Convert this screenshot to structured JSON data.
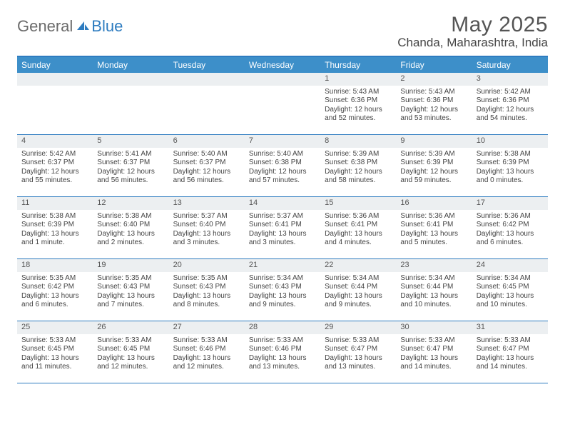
{
  "logo": {
    "general": "General",
    "blue": "Blue"
  },
  "title": "May 2025",
  "location": "Chanda, Maharashtra, India",
  "calendar": {
    "accent_color": "#2e7cc0",
    "header_bg": "#3d8fc9",
    "daynum_bg": "#eceff1",
    "bg": "#ffffff",
    "text_color": "#444444",
    "header_fontsize": 12,
    "body_fontsize": 10,
    "columns": [
      "Sunday",
      "Monday",
      "Tuesday",
      "Wednesday",
      "Thursday",
      "Friday",
      "Saturday"
    ],
    "weeks": [
      [
        {
          "n": "",
          "sr": "",
          "ss": "",
          "dl": ""
        },
        {
          "n": "",
          "sr": "",
          "ss": "",
          "dl": ""
        },
        {
          "n": "",
          "sr": "",
          "ss": "",
          "dl": ""
        },
        {
          "n": "",
          "sr": "",
          "ss": "",
          "dl": ""
        },
        {
          "n": "1",
          "sr": "Sunrise: 5:43 AM",
          "ss": "Sunset: 6:36 PM",
          "dl": "Daylight: 12 hours and 52 minutes."
        },
        {
          "n": "2",
          "sr": "Sunrise: 5:43 AM",
          "ss": "Sunset: 6:36 PM",
          "dl": "Daylight: 12 hours and 53 minutes."
        },
        {
          "n": "3",
          "sr": "Sunrise: 5:42 AM",
          "ss": "Sunset: 6:36 PM",
          "dl": "Daylight: 12 hours and 54 minutes."
        }
      ],
      [
        {
          "n": "4",
          "sr": "Sunrise: 5:42 AM",
          "ss": "Sunset: 6:37 PM",
          "dl": "Daylight: 12 hours and 55 minutes."
        },
        {
          "n": "5",
          "sr": "Sunrise: 5:41 AM",
          "ss": "Sunset: 6:37 PM",
          "dl": "Daylight: 12 hours and 56 minutes."
        },
        {
          "n": "6",
          "sr": "Sunrise: 5:40 AM",
          "ss": "Sunset: 6:37 PM",
          "dl": "Daylight: 12 hours and 56 minutes."
        },
        {
          "n": "7",
          "sr": "Sunrise: 5:40 AM",
          "ss": "Sunset: 6:38 PM",
          "dl": "Daylight: 12 hours and 57 minutes."
        },
        {
          "n": "8",
          "sr": "Sunrise: 5:39 AM",
          "ss": "Sunset: 6:38 PM",
          "dl": "Daylight: 12 hours and 58 minutes."
        },
        {
          "n": "9",
          "sr": "Sunrise: 5:39 AM",
          "ss": "Sunset: 6:39 PM",
          "dl": "Daylight: 12 hours and 59 minutes."
        },
        {
          "n": "10",
          "sr": "Sunrise: 5:38 AM",
          "ss": "Sunset: 6:39 PM",
          "dl": "Daylight: 13 hours and 0 minutes."
        }
      ],
      [
        {
          "n": "11",
          "sr": "Sunrise: 5:38 AM",
          "ss": "Sunset: 6:39 PM",
          "dl": "Daylight: 13 hours and 1 minute."
        },
        {
          "n": "12",
          "sr": "Sunrise: 5:38 AM",
          "ss": "Sunset: 6:40 PM",
          "dl": "Daylight: 13 hours and 2 minutes."
        },
        {
          "n": "13",
          "sr": "Sunrise: 5:37 AM",
          "ss": "Sunset: 6:40 PM",
          "dl": "Daylight: 13 hours and 3 minutes."
        },
        {
          "n": "14",
          "sr": "Sunrise: 5:37 AM",
          "ss": "Sunset: 6:41 PM",
          "dl": "Daylight: 13 hours and 3 minutes."
        },
        {
          "n": "15",
          "sr": "Sunrise: 5:36 AM",
          "ss": "Sunset: 6:41 PM",
          "dl": "Daylight: 13 hours and 4 minutes."
        },
        {
          "n": "16",
          "sr": "Sunrise: 5:36 AM",
          "ss": "Sunset: 6:41 PM",
          "dl": "Daylight: 13 hours and 5 minutes."
        },
        {
          "n": "17",
          "sr": "Sunrise: 5:36 AM",
          "ss": "Sunset: 6:42 PM",
          "dl": "Daylight: 13 hours and 6 minutes."
        }
      ],
      [
        {
          "n": "18",
          "sr": "Sunrise: 5:35 AM",
          "ss": "Sunset: 6:42 PM",
          "dl": "Daylight: 13 hours and 6 minutes."
        },
        {
          "n": "19",
          "sr": "Sunrise: 5:35 AM",
          "ss": "Sunset: 6:43 PM",
          "dl": "Daylight: 13 hours and 7 minutes."
        },
        {
          "n": "20",
          "sr": "Sunrise: 5:35 AM",
          "ss": "Sunset: 6:43 PM",
          "dl": "Daylight: 13 hours and 8 minutes."
        },
        {
          "n": "21",
          "sr": "Sunrise: 5:34 AM",
          "ss": "Sunset: 6:43 PM",
          "dl": "Daylight: 13 hours and 9 minutes."
        },
        {
          "n": "22",
          "sr": "Sunrise: 5:34 AM",
          "ss": "Sunset: 6:44 PM",
          "dl": "Daylight: 13 hours and 9 minutes."
        },
        {
          "n": "23",
          "sr": "Sunrise: 5:34 AM",
          "ss": "Sunset: 6:44 PM",
          "dl": "Daylight: 13 hours and 10 minutes."
        },
        {
          "n": "24",
          "sr": "Sunrise: 5:34 AM",
          "ss": "Sunset: 6:45 PM",
          "dl": "Daylight: 13 hours and 10 minutes."
        }
      ],
      [
        {
          "n": "25",
          "sr": "Sunrise: 5:33 AM",
          "ss": "Sunset: 6:45 PM",
          "dl": "Daylight: 13 hours and 11 minutes."
        },
        {
          "n": "26",
          "sr": "Sunrise: 5:33 AM",
          "ss": "Sunset: 6:45 PM",
          "dl": "Daylight: 13 hours and 12 minutes."
        },
        {
          "n": "27",
          "sr": "Sunrise: 5:33 AM",
          "ss": "Sunset: 6:46 PM",
          "dl": "Daylight: 13 hours and 12 minutes."
        },
        {
          "n": "28",
          "sr": "Sunrise: 5:33 AM",
          "ss": "Sunset: 6:46 PM",
          "dl": "Daylight: 13 hours and 13 minutes."
        },
        {
          "n": "29",
          "sr": "Sunrise: 5:33 AM",
          "ss": "Sunset: 6:47 PM",
          "dl": "Daylight: 13 hours and 13 minutes."
        },
        {
          "n": "30",
          "sr": "Sunrise: 5:33 AM",
          "ss": "Sunset: 6:47 PM",
          "dl": "Daylight: 13 hours and 14 minutes."
        },
        {
          "n": "31",
          "sr": "Sunrise: 5:33 AM",
          "ss": "Sunset: 6:47 PM",
          "dl": "Daylight: 13 hours and 14 minutes."
        }
      ]
    ]
  }
}
